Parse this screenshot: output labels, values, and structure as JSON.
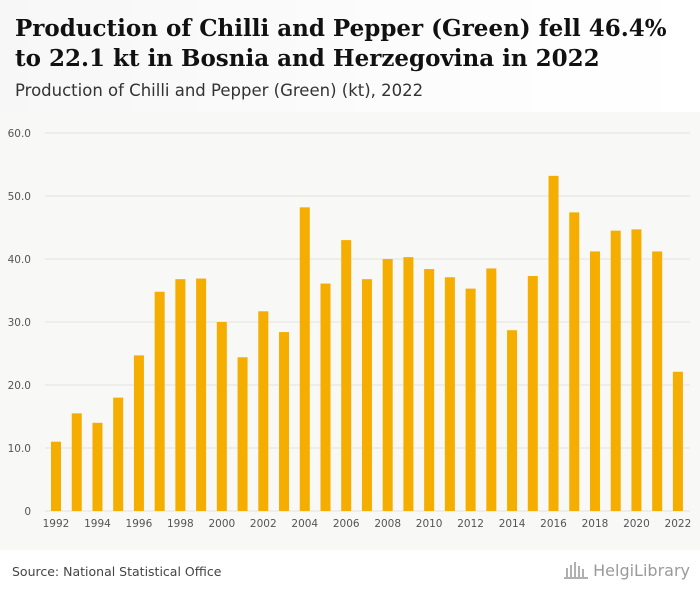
{
  "header": {
    "title": "Production of Chilli and Pepper (Green) fell 46.4% to 22.1 kt in Bosnia and Herzegovina in 2022",
    "subtitle": "Production of Chilli and Pepper (Green) (kt), 2022"
  },
  "footer": {
    "source": "Source: National Statistical Office",
    "logo_text": "HelgiLibrary"
  },
  "colors": {
    "bar": "#f5ad00",
    "grid": "#e2e2e2",
    "tick_text": "#555555"
  },
  "chart_data": {
    "type": "bar",
    "title": "Production of Chilli and Pepper (Green) (kt), 2022",
    "xlabel": "",
    "ylabel": "",
    "ylim": [
      0,
      60
    ],
    "yticks": [
      "0",
      "10.0",
      "20.0",
      "30.0",
      "40.0",
      "50.0",
      "60.0"
    ],
    "ytick_values": [
      0,
      10,
      20,
      30,
      40,
      50,
      60
    ],
    "grid": true,
    "categories": [
      "1992",
      "1993",
      "1994",
      "1995",
      "1996",
      "1997",
      "1998",
      "1999",
      "2000",
      "2001",
      "2002",
      "2003",
      "2004",
      "2005",
      "2006",
      "2007",
      "2008",
      "2009",
      "2010",
      "2011",
      "2012",
      "2013",
      "2014",
      "2015",
      "2016",
      "2017",
      "2018",
      "2019",
      "2020",
      "2021",
      "2022"
    ],
    "xtick_labels": [
      "1992",
      "1994",
      "1996",
      "1998",
      "2000",
      "2002",
      "2004",
      "2006",
      "2008",
      "2010",
      "2012",
      "2014",
      "2016",
      "2018",
      "2020",
      "2022"
    ],
    "values": [
      11.0,
      15.5,
      14.0,
      18.0,
      24.7,
      34.8,
      36.8,
      36.9,
      30.0,
      24.4,
      31.7,
      28.4,
      48.2,
      36.1,
      43.0,
      36.8,
      40.0,
      40.3,
      38.4,
      37.1,
      35.3,
      38.5,
      28.7,
      37.3,
      53.2,
      47.4,
      41.2,
      44.5,
      44.7,
      41.2,
      22.1
    ]
  }
}
